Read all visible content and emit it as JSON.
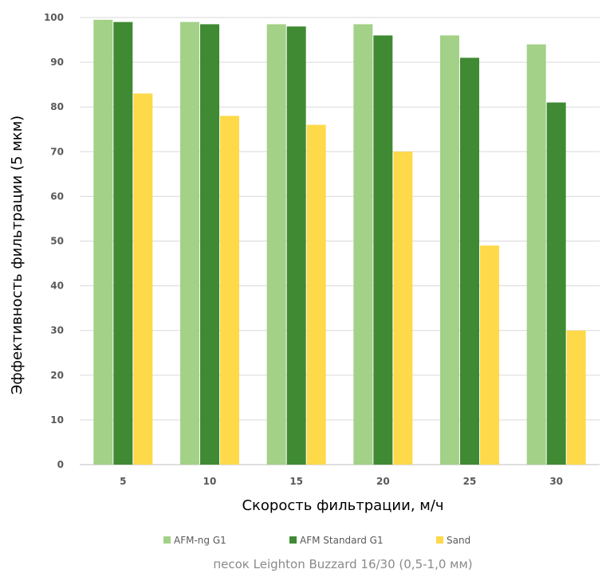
{
  "chart_data": {
    "type": "bar",
    "categories": [
      "5",
      "10",
      "15",
      "20",
      "25",
      "30"
    ],
    "series": [
      {
        "name": "AFM-ng G1",
        "color": "#a3d187",
        "values": [
          99.5,
          99,
          98.5,
          98.5,
          96,
          94
        ]
      },
      {
        "name": "AFM Standard G1",
        "color": "#3f8a33",
        "values": [
          99,
          98.5,
          98,
          96,
          91,
          81
        ]
      },
      {
        "name": "Sand",
        "color": "#fed94a",
        "values": [
          83,
          78,
          76,
          70,
          49,
          30
        ]
      }
    ],
    "xlabel": "Скорость фильтрации, м/ч",
    "ylabel": "Эффективность фильтрации (5 мкм)",
    "ylim": [
      0,
      100
    ],
    "yticks": [
      0,
      10,
      20,
      30,
      40,
      50,
      60,
      70,
      80,
      90,
      100
    ],
    "grid": true,
    "legend_position": "bottom",
    "caption": "песок Leighton Buzzard 16/30 (0,5-1,0 мм)"
  }
}
